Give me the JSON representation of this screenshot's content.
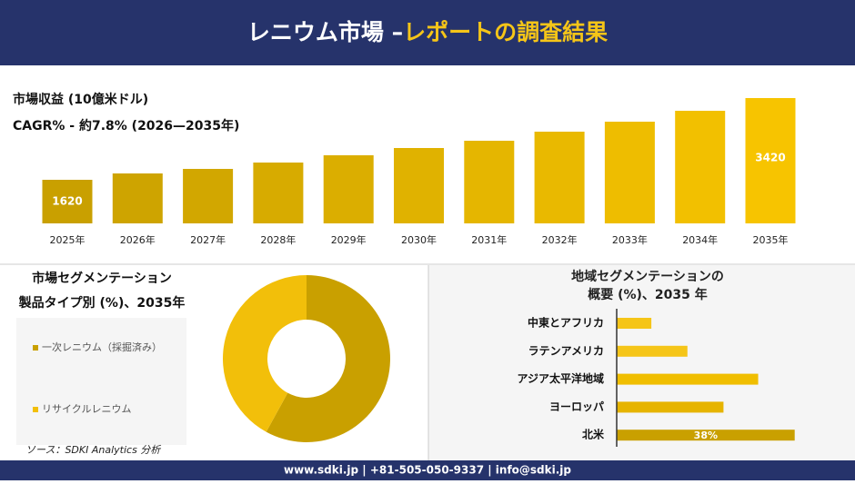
{
  "header": {
    "title_main": "レニウム市場 –",
    "title_accent": "レポートの調査結果"
  },
  "chart_data": [
    {
      "type": "bar",
      "title": "市場収益 (10億米ドル)",
      "subtitle": "CAGR% - 約7.8% (2026—2035年)",
      "categories": [
        "2025年",
        "2026年",
        "2027年",
        "2028年",
        "2029年",
        "2030年",
        "2031年",
        "2032年",
        "2033年",
        "2034年",
        "2035年"
      ],
      "values": [
        1620,
        1760,
        1860,
        2000,
        2160,
        2320,
        2480,
        2680,
        2900,
        3140,
        3420
      ],
      "labeled": [
        0,
        10
      ],
      "colors": [
        "#c9a000",
        "#f7c400"
      ],
      "ylim": [
        660,
        3420
      ]
    },
    {
      "type": "pie",
      "title": "市場セグメンテーション",
      "subtitle": "製品タイプ別 (%)、2035年",
      "categories": [
        "一次レニウム（採掘済み）",
        "リサイクルレニウム"
      ],
      "values": [
        58,
        42
      ],
      "colors": [
        "#c9a000",
        "#f2bf0a"
      ],
      "donut": true
    },
    {
      "type": "hbar",
      "title": [
        "地域セグメンテーションの",
        "概要 (%)、2035 年"
      ],
      "categories": [
        "中東とアフリカ",
        "ラテンアメリカ",
        "アジア太平洋地域",
        "ヨーロッパ",
        "北米"
      ],
      "values": [
        7.4,
        15.1,
        30.2,
        22.8,
        38
      ],
      "value_labels": [
        null,
        null,
        null,
        null,
        "38%"
      ],
      "colors": [
        "#f5c518",
        "#f5c518",
        "#f0be00",
        "#e6b400",
        "#c9a000"
      ],
      "xlim": [
        0,
        40
      ]
    }
  ],
  "source": "ソース：SDKI Analytics 分析",
  "footer": "www.sdki.jp | +81-505-050-9337 | info@sdki.jp"
}
